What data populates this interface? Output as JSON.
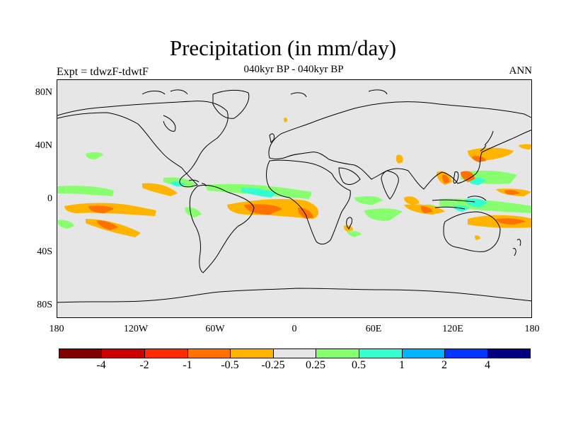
{
  "title": "Precipitation (in mm/day)",
  "subtitle": "040kyr BP - 040kyr BP",
  "left_label": "Expt = tdwzF-tdwtF",
  "right_label": "ANN",
  "map": {
    "background_color": "#e6e6e6",
    "lat_ticks": [
      "80N",
      "40N",
      "0",
      "40S",
      "80S"
    ],
    "lon_ticks": [
      "180",
      "120W",
      "60W",
      "0",
      "60E",
      "120E",
      "180"
    ]
  },
  "colorbar": {
    "colors": [
      "#800000",
      "#cc0000",
      "#ff2a00",
      "#ff7200",
      "#ffb400",
      "#e6e6e6",
      "#88ff6e",
      "#33ffd2",
      "#00b4ff",
      "#0036ff",
      "#000080"
    ],
    "labels": [
      "-4",
      "-2",
      "-1",
      "-0.5",
      "-0.25",
      "0.25",
      "0.5",
      "1",
      "2",
      "4"
    ]
  }
}
